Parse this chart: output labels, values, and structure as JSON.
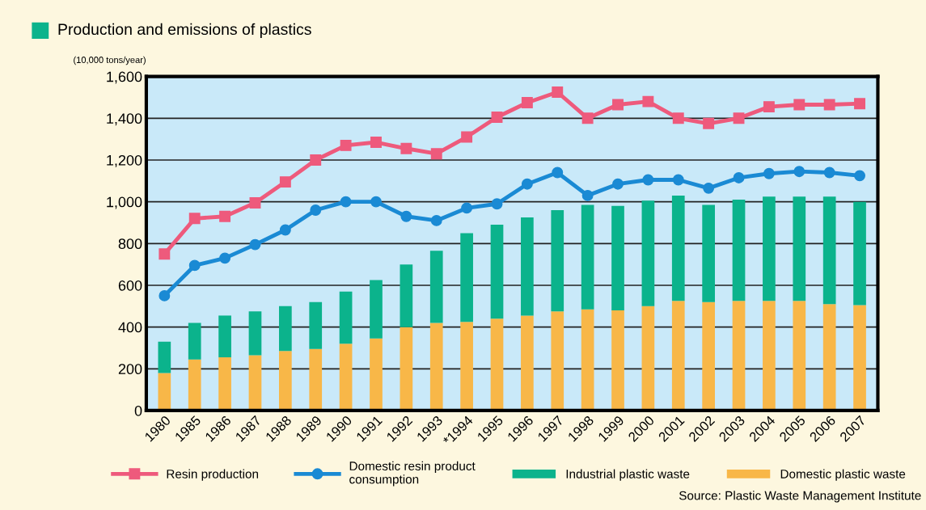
{
  "chart_data": {
    "type": "bar",
    "title": "Production and emissions of plastics",
    "ylabel": "(10,000 tons/year)",
    "categories": [
      "1980",
      "1985",
      "1986",
      "1987",
      "1988",
      "1989",
      "1990",
      "1991",
      "1992",
      "1993",
      "*1994",
      "1995",
      "1996",
      "1997",
      "1998",
      "1999",
      "2000",
      "2001",
      "2002",
      "2003",
      "2004",
      "2005",
      "2006",
      "2007"
    ],
    "stacked": true,
    "series": [
      {
        "name": "Domestic plastic waste",
        "color": "#f8b748",
        "values": [
          180,
          245,
          255,
          265,
          285,
          295,
          320,
          345,
          400,
          420,
          425,
          440,
          455,
          475,
          485,
          480,
          500,
          525,
          520,
          525,
          525,
          525,
          510,
          505
        ]
      },
      {
        "name": "Industrial plastic waste",
        "color": "#0bb38c",
        "values": [
          150,
          175,
          200,
          210,
          215,
          225,
          250,
          280,
          300,
          345,
          425,
          450,
          470,
          485,
          500,
          500,
          505,
          505,
          465,
          485,
          500,
          500,
          515,
          495
        ]
      },
      {
        "name": "Resin production",
        "type": "line",
        "color": "#ee5a7c",
        "marker": "square",
        "values": [
          750,
          920,
          930,
          995,
          1095,
          1200,
          1270,
          1285,
          1255,
          1230,
          1310,
          1405,
          1475,
          1525,
          1400,
          1465,
          1480,
          1400,
          1375,
          1400,
          1455,
          1465,
          1465,
          1470
        ]
      },
      {
        "name": "Domestic resin product\nconsumption",
        "type": "line",
        "color": "#1a8ad4",
        "marker": "circle",
        "values": [
          550,
          695,
          730,
          795,
          865,
          960,
          1000,
          1000,
          930,
          910,
          970,
          990,
          1085,
          1140,
          1030,
          1085,
          1105,
          1105,
          1065,
          1115,
          1135,
          1145,
          1140,
          1125
        ]
      }
    ],
    "ylim": [
      0,
      1600
    ],
    "yticks": [
      0,
      {
        "value": 200,
        "label": "200"
      },
      {
        "value": 400,
        "label": "400"
      },
      {
        "value": 600,
        "label": "600"
      },
      {
        "value": 800,
        "label": "800"
      },
      {
        "value": 1000,
        "label": "1,000"
      },
      {
        "value": 1200,
        "label": "1,200"
      },
      {
        "value": 1400,
        "label": "1,400"
      },
      {
        "value": 1600,
        "label": "1,600"
      }
    ],
    "grid": "y",
    "legend": "bottom",
    "annotations": [
      "Source: Plastic Waste Management Institute"
    ]
  }
}
